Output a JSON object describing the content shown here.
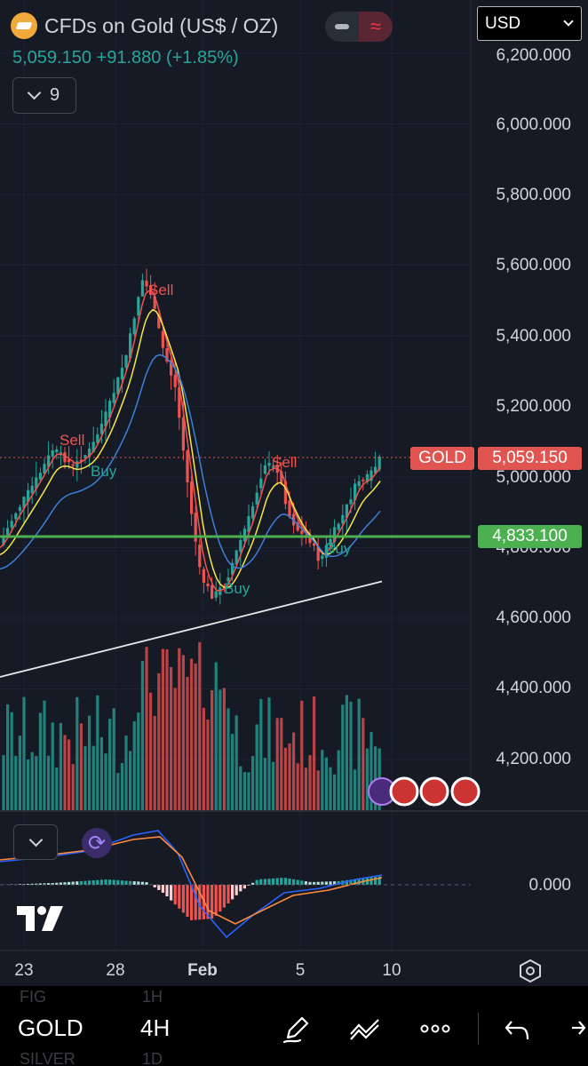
{
  "header": {
    "title": "CFDs on Gold (US$ / OZ)",
    "price": "5,059.150",
    "change": "+91.880",
    "change_pct": "(+1.85%)",
    "indicator_count": "9",
    "currency": "USD"
  },
  "price_axis": {
    "labels": [
      "6,200.000",
      "6,000.000",
      "5,800.000",
      "5,600.000",
      "5,400.000",
      "5,200.000",
      "5,000.000",
      "4,800.000",
      "4,600.000",
      "4,400.000",
      "4,200.000"
    ],
    "symbol_tag": "GOLD",
    "last_price_tag": "5,059.150",
    "level_tag": "4,833.100"
  },
  "signals": [
    {
      "type": "sell",
      "text": "Sell"
    },
    {
      "type": "sell",
      "text": "Sell"
    },
    {
      "type": "sell",
      "text": "Sell"
    },
    {
      "type": "buy",
      "text": "Buy"
    },
    {
      "type": "buy",
      "text": "Buy"
    },
    {
      "type": "buy",
      "text": "Buy"
    }
  ],
  "macd": {
    "zero_label": "0.000"
  },
  "time_axis": [
    "23",
    "28",
    "Feb",
    "5",
    "10"
  ],
  "bottom_bar": {
    "symbol": "GOLD",
    "timeframe": "4H",
    "ghost_above": [
      "FIG",
      "1H"
    ],
    "ghost_below": [
      "SILVER",
      "1D"
    ]
  },
  "icons": [
    "gold-logo-icon",
    "minus-icon",
    "wave-icon",
    "chevron-down-icon",
    "macd-refresh-icon",
    "tradingview-logo-icon",
    "settings-hexagon-icon",
    "pen-icon",
    "trend-tool-icon",
    "more-icon",
    "undo-icon",
    "redo-icon",
    "us-flag-icon",
    "lightning-icon"
  ],
  "colors": {
    "background": "#161a25",
    "up": "#26a69a",
    "down": "#ef5350",
    "level_line": "#4caf50",
    "ema_yellow": "#f5e84a",
    "ema_blue": "#3d7fd9",
    "ema_red": "#ef5350",
    "sma_white": "#e8e8e8"
  }
}
